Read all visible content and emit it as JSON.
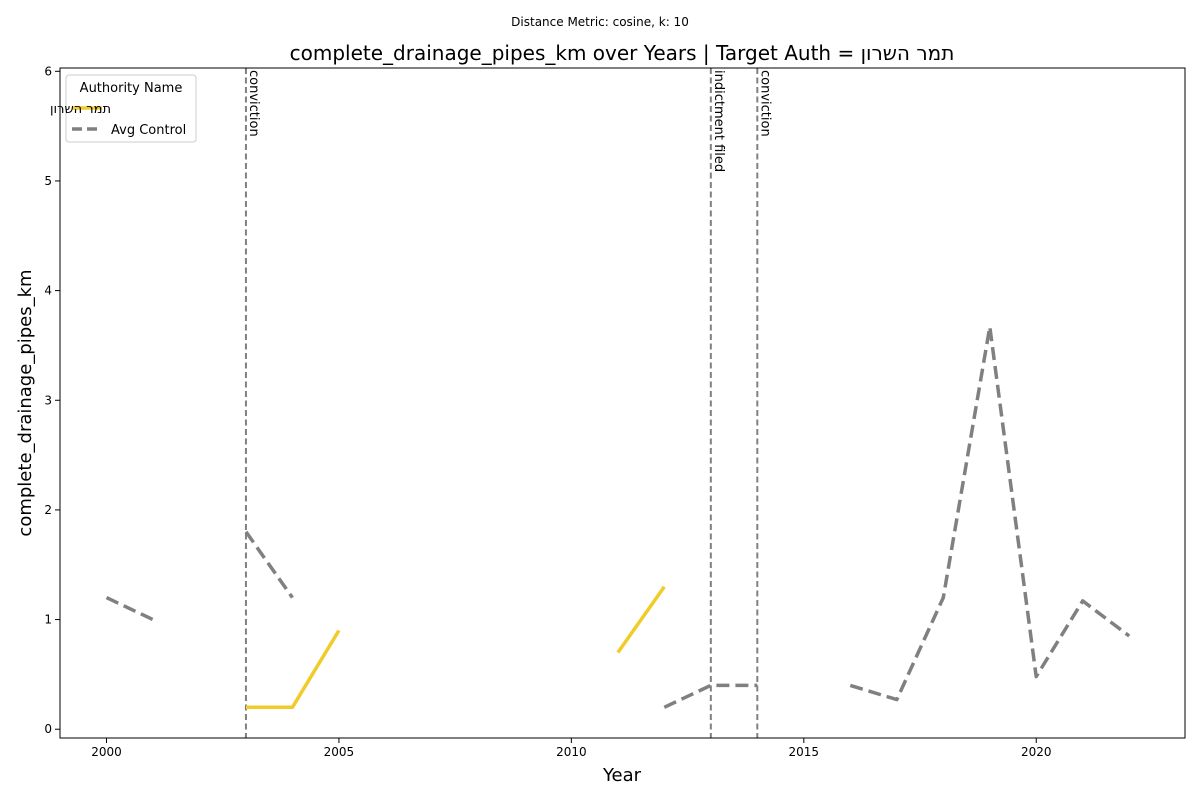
{
  "suptitle": "Distance Metric: cosine, k: 10",
  "chart_data": {
    "type": "line",
    "title": "complete_drainage_pipes_km over Years | Target Auth = תמר השרון",
    "xlabel": "Year",
    "ylabel": "complete_drainage_pipes_km",
    "xlim": [
      1999.0,
      2023.2
    ],
    "ylim": [
      -0.08,
      6.03
    ],
    "x_ticks": [
      2000,
      2005,
      2010,
      2015,
      2020
    ],
    "y_ticks": [
      0,
      1,
      2,
      3,
      4,
      5,
      6
    ],
    "grid": false,
    "legend": {
      "title": "Authority Name",
      "placement": "top-left"
    },
    "series": [
      {
        "name": "תמר השרון",
        "color": "#f0cc2a",
        "style": "solid",
        "segments": [
          [
            [
              2003,
              0.2
            ],
            [
              2004,
              0.2
            ],
            [
              2005,
              0.9
            ]
          ],
          [
            [
              2011,
              0.7
            ],
            [
              2012,
              1.3
            ]
          ]
        ]
      },
      {
        "name": "Avg Control",
        "color": "#808080",
        "style": "dashed",
        "segments": [
          [
            [
              2000,
              1.2
            ],
            [
              2001,
              1.0
            ]
          ],
          [
            [
              2003,
              1.8
            ],
            [
              2004,
              1.2
            ]
          ],
          [
            [
              2012,
              0.2
            ],
            [
              2013,
              0.4
            ],
            [
              2014,
              0.4
            ]
          ],
          [
            [
              2016,
              0.4
            ],
            [
              2017,
              0.27
            ],
            [
              2018,
              1.2
            ],
            [
              2019,
              3.67
            ],
            [
              2020,
              0.48
            ],
            [
              2021,
              1.17
            ],
            [
              2022,
              0.85
            ]
          ]
        ]
      }
    ],
    "events": [
      {
        "x": 2003,
        "label": "conviction"
      },
      {
        "x": 2013,
        "label": "indictment filed"
      },
      {
        "x": 2014,
        "label": "conviction"
      }
    ]
  }
}
